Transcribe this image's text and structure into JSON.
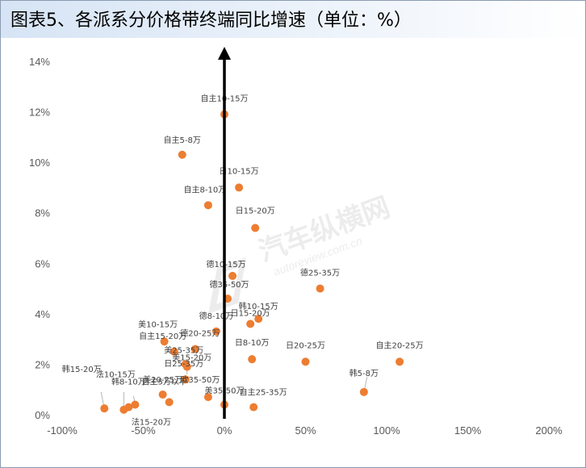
{
  "header": {
    "title": "图表5、各派系分价格带终端同比增速（单位：%）"
  },
  "watermark": {
    "brand": "汽车纵横网",
    "url": "autoreview.com.cn"
  },
  "colors": {
    "point": "#ed7d31",
    "axis_arrow": "#000000",
    "title_bg": "#d6e4f5"
  },
  "chart_data": {
    "type": "scatter",
    "title": "图表5、各派系分价格带终端同比增速（单位：%）",
    "xlabel": "",
    "ylabel": "",
    "xlim": [
      -100,
      200
    ],
    "ylim": [
      0,
      14
    ],
    "x_ticks": [
      "-100%",
      "-50%",
      "0%",
      "50%",
      "100%",
      "150%",
      "200%"
    ],
    "y_ticks": [
      "0%",
      "2%",
      "4%",
      "6%",
      "8%",
      "10%",
      "12%",
      "14%"
    ],
    "grid": false,
    "legend": "none",
    "points": [
      {
        "label": "自主10-15万",
        "x": 0,
        "y": 11.9
      },
      {
        "label": "自主5-8万",
        "x": -26,
        "y": 10.3
      },
      {
        "label": "日10-15万",
        "x": 9,
        "y": 9.0
      },
      {
        "label": "自主8-10万",
        "x": -10,
        "y": 8.3
      },
      {
        "label": "日15-20万",
        "x": 19,
        "y": 7.4
      },
      {
        "label": "德10-15万",
        "x": 5,
        "y": 5.5
      },
      {
        "label": "德25-35万",
        "x": 59,
        "y": 5.0
      },
      {
        "label": "德35-50万",
        "x": 2,
        "y": 4.6
      },
      {
        "label": "韩10-15万",
        "x": 21,
        "y": 3.8
      },
      {
        "label": "日15-20万",
        "x": 16,
        "y": 3.6
      },
      {
        "label": "德8-10万",
        "x": -5,
        "y": 3.3
      },
      {
        "label": "美10-15万",
        "x": -37,
        "y": 2.9
      },
      {
        "label": "德20-25万",
        "x": -18,
        "y": 2.6
      },
      {
        "label": "自主15-20万",
        "x": -31,
        "y": 2.5
      },
      {
        "label": "美25-35万",
        "x": -24,
        "y": 2.0
      },
      {
        "label": "日8-10万",
        "x": 17,
        "y": 2.2
      },
      {
        "label": "日20-25万",
        "x": 50,
        "y": 2.1
      },
      {
        "label": "自主20-25万",
        "x": 108,
        "y": 2.1
      },
      {
        "label": "美15-20万",
        "x": -23,
        "y": 1.9
      },
      {
        "label": "日25-35万",
        "x": -24,
        "y": 1.4
      },
      {
        "label": "美20-25万",
        "x": -38,
        "y": 0.8
      },
      {
        "label": "欧35-50万",
        "x": -10,
        "y": 0.7
      },
      {
        "label": "美35-50万",
        "x": 0,
        "y": 0.4
      },
      {
        "label": "自主25-35万",
        "x": 18,
        "y": 0.3
      },
      {
        "label": "韩5-8万",
        "x": 86,
        "y": 0.9
      },
      {
        "label": "自主5万以下",
        "x": -34,
        "y": 0.5
      },
      {
        "label": "韩15-20万",
        "x": -74,
        "y": 0.25
      },
      {
        "label": "法10-15万",
        "x": -62,
        "y": 0.2
      },
      {
        "label": "韩8-10万",
        "x": -59,
        "y": 0.3
      },
      {
        "label": "法15-20万",
        "x": -55,
        "y": 0.4
      }
    ]
  }
}
